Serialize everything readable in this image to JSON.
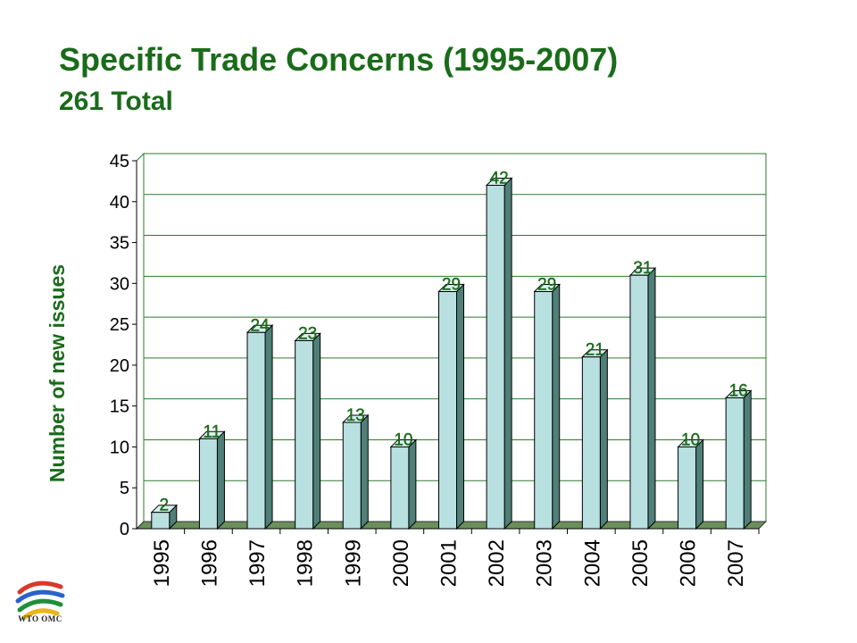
{
  "header": {
    "title": "Specific Trade Concerns (1995-2007)",
    "subtitle": "261 Total"
  },
  "logo": {
    "text": "WTO OMC"
  },
  "colors": {
    "title": "#1a6b1a",
    "bar_face": "#b8e0e0",
    "bar_side": "#4f7f78",
    "floor": "#6b8f5a",
    "axis_text": "#000000",
    "data_label": "#1a6b1a"
  },
  "chart_data": {
    "type": "bar",
    "title": "Specific Trade Concerns (1995-2007)",
    "subtitle": "261 Total",
    "xlabel": "",
    "ylabel": "Number of new issues",
    "categories": [
      "1995",
      "1996",
      "1997",
      "1998",
      "1999",
      "2000",
      "2001",
      "2002",
      "2003",
      "2004",
      "2005",
      "2006",
      "2007"
    ],
    "values": [
      2,
      11,
      24,
      23,
      13,
      10,
      29,
      42,
      29,
      21,
      31,
      10,
      16
    ],
    "ylim": [
      0,
      45
    ],
    "yticks": [
      0,
      5,
      10,
      15,
      20,
      25,
      30,
      35,
      40,
      45
    ],
    "grid": true,
    "legend": "none",
    "style": "3d"
  }
}
